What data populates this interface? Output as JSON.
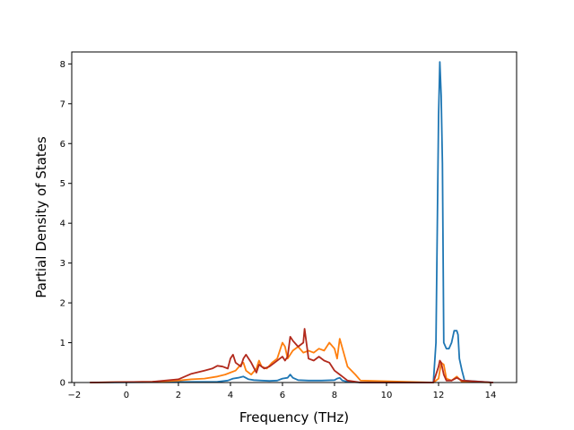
{
  "chart_data": {
    "type": "line",
    "xlabel": "Frequency (THz)",
    "ylabel": "Partial Density of States",
    "xlim": [
      -2.1,
      15.0
    ],
    "ylim": [
      0,
      8.3
    ],
    "xticks": [
      -2,
      0,
      2,
      4,
      6,
      8,
      10,
      12,
      14
    ],
    "yticks": [
      0,
      1,
      2,
      3,
      4,
      5,
      6,
      7,
      8
    ],
    "grid": false,
    "legend": "none",
    "series": [
      {
        "color": "#1f77b4",
        "x": [
          -1.4,
          3.5,
          3.9,
          4.1,
          4.3,
          4.5,
          4.7,
          4.9,
          5.2,
          5.5,
          5.8,
          6.0,
          6.2,
          6.3,
          6.4,
          6.6,
          7.0,
          7.5,
          8.0,
          8.1,
          8.2,
          8.3,
          8.5,
          9.0,
          11.8,
          11.9,
          12.0,
          12.05,
          12.1,
          12.15,
          12.2,
          12.3,
          12.4,
          12.5,
          12.6,
          12.7,
          12.75,
          12.8,
          12.9,
          13.0,
          14.1
        ],
        "y": [
          0,
          0.02,
          0.05,
          0.1,
          0.12,
          0.15,
          0.08,
          0.06,
          0.05,
          0.04,
          0.05,
          0.1,
          0.12,
          0.2,
          0.12,
          0.06,
          0.05,
          0.05,
          0.06,
          0.1,
          0.12,
          0.05,
          0.02,
          0,
          0,
          1.0,
          6.7,
          8.05,
          7.2,
          5.5,
          1.0,
          0.85,
          0.85,
          1.0,
          1.3,
          1.3,
          1.2,
          0.6,
          0.3,
          0.05,
          0
        ]
      },
      {
        "color": "#ff7f0e",
        "x": [
          -1.4,
          1.0,
          2.0,
          2.5,
          3.0,
          3.5,
          3.8,
          4.0,
          4.2,
          4.4,
          4.5,
          4.6,
          4.8,
          5.0,
          5.1,
          5.2,
          5.4,
          5.6,
          5.8,
          6.0,
          6.1,
          6.2,
          6.4,
          6.6,
          6.8,
          7.0,
          7.2,
          7.4,
          7.6,
          7.8,
          8.0,
          8.1,
          8.2,
          8.5,
          8.8,
          9.0,
          11.8,
          12.0,
          12.1,
          12.2,
          12.3,
          12.5,
          12.7,
          12.9,
          14.1
        ],
        "y": [
          0,
          0.02,
          0.05,
          0.08,
          0.1,
          0.15,
          0.2,
          0.25,
          0.3,
          0.45,
          0.5,
          0.3,
          0.2,
          0.35,
          0.55,
          0.4,
          0.35,
          0.5,
          0.6,
          1.0,
          0.9,
          0.6,
          0.8,
          0.9,
          0.75,
          0.8,
          0.75,
          0.85,
          0.8,
          1.0,
          0.85,
          0.6,
          1.1,
          0.4,
          0.2,
          0.05,
          0,
          0.1,
          0.5,
          0.45,
          0.1,
          0.05,
          0.15,
          0.02,
          0
        ]
      },
      {
        "color": "#b22a1d",
        "x": [
          -1.4,
          1.0,
          2.0,
          2.5,
          3.0,
          3.3,
          3.5,
          3.7,
          3.9,
          4.0,
          4.1,
          4.2,
          4.4,
          4.5,
          4.6,
          4.8,
          5.0,
          5.1,
          5.3,
          5.5,
          5.7,
          5.9,
          6.0,
          6.1,
          6.2,
          6.3,
          6.4,
          6.6,
          6.8,
          6.85,
          7.0,
          7.2,
          7.4,
          7.6,
          7.8,
          8.0,
          8.2,
          8.3,
          8.5,
          9.0,
          11.8,
          12.0,
          12.05,
          12.1,
          12.2,
          12.3,
          12.5,
          12.7,
          12.9,
          14.1
        ],
        "y": [
          0,
          0.02,
          0.08,
          0.22,
          0.3,
          0.35,
          0.42,
          0.4,
          0.35,
          0.6,
          0.7,
          0.5,
          0.4,
          0.6,
          0.7,
          0.5,
          0.25,
          0.45,
          0.35,
          0.4,
          0.5,
          0.6,
          0.65,
          0.55,
          0.65,
          1.15,
          1.05,
          0.9,
          1.0,
          1.35,
          0.6,
          0.55,
          0.65,
          0.55,
          0.5,
          0.3,
          0.2,
          0.15,
          0.05,
          0,
          0,
          0.4,
          0.55,
          0.5,
          0.2,
          0.05,
          0.05,
          0.12,
          0.05,
          0
        ]
      }
    ]
  }
}
